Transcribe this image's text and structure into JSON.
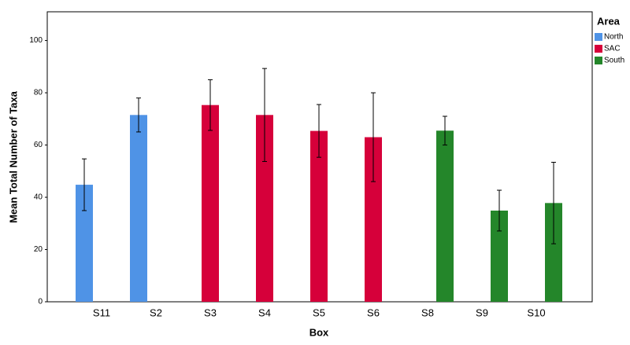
{
  "chart_data": {
    "type": "bar",
    "x_label": "Box",
    "y_label": "Mean Total Number of Taxa",
    "legend_title": "Area",
    "categories": [
      "S11",
      "S2",
      "S3",
      "S4",
      "S5",
      "S6",
      "S8",
      "S9",
      "S10"
    ],
    "series": [
      {
        "name": "North",
        "color": "#4f93e6",
        "values": [
          44.8,
          71.5,
          null,
          null,
          null,
          null,
          null,
          null,
          null
        ],
        "errors": [
          9.9,
          6.5,
          null,
          null,
          null,
          null,
          null,
          null,
          null
        ]
      },
      {
        "name": "SAC",
        "color": "#d6003a",
        "values": [
          null,
          null,
          75.3,
          71.5,
          65.4,
          63,
          null,
          null,
          null
        ],
        "errors": [
          null,
          null,
          9.7,
          17.8,
          10.1,
          17,
          null,
          null,
          null
        ]
      },
      {
        "name": "South",
        "color": "#24862a",
        "values": [
          null,
          null,
          null,
          null,
          null,
          null,
          65.5,
          34.9,
          37.8
        ],
        "errors": [
          null,
          null,
          null,
          null,
          null,
          null,
          5.5,
          7.8,
          15.6
        ]
      }
    ],
    "ylim": [
      0,
      111
    ],
    "yticks": [
      0,
      20,
      40,
      60,
      80,
      100
    ],
    "grid": false,
    "legend": "right"
  }
}
